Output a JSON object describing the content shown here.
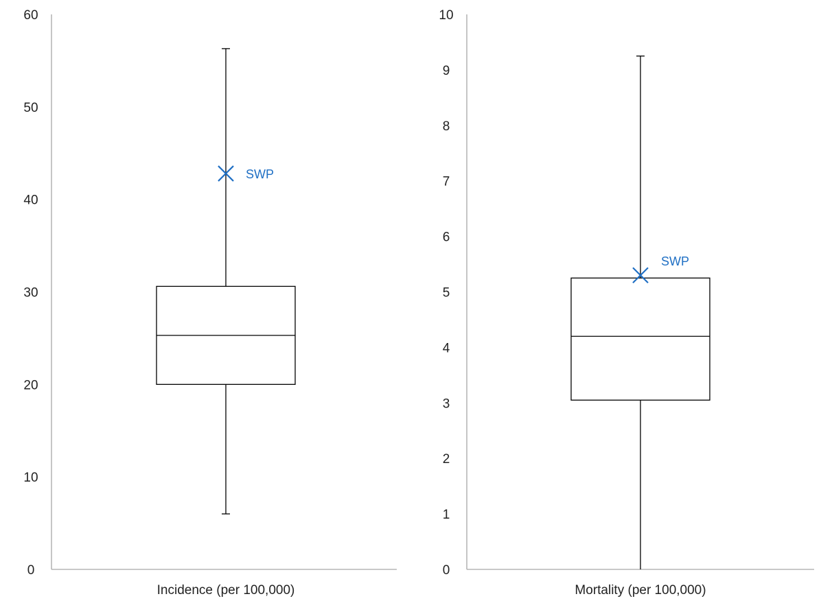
{
  "chart_data": [
    {
      "type": "boxplot",
      "xlabel": "Incidence (per 100,000)",
      "ylim": [
        0,
        60
      ],
      "yticks": [
        0,
        10,
        20,
        30,
        40,
        50,
        60
      ],
      "grid": false,
      "box": {
        "min": 6,
        "q1": 20,
        "median": 25.3,
        "q3": 30.6,
        "max": 56.3
      },
      "marker": {
        "label": "SWP",
        "value": 42.8,
        "color": "#1f6fc4",
        "symbol": "x"
      }
    },
    {
      "type": "boxplot",
      "xlabel": "Mortality (per 100,000)",
      "ylim": [
        0,
        10
      ],
      "yticks": [
        0,
        1,
        2,
        3,
        4,
        5,
        6,
        7,
        8,
        9,
        10
      ],
      "grid": false,
      "box": {
        "min": 0,
        "q1": 3.05,
        "median": 4.2,
        "q3": 5.25,
        "max": 9.25
      },
      "marker": {
        "label": "SWP",
        "value": 5.3,
        "color": "#1f6fc4",
        "symbol": "x"
      }
    }
  ]
}
